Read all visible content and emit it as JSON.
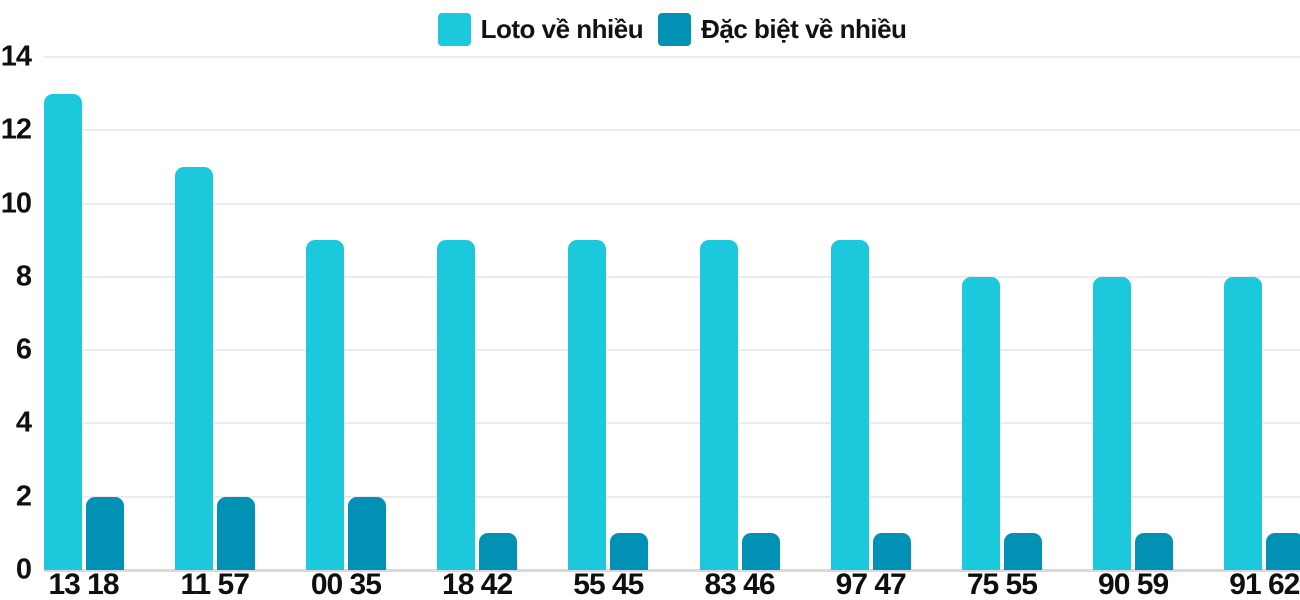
{
  "chart_data": {
    "type": "bar",
    "title": "",
    "xlabel": "",
    "ylabel": "",
    "categories": [
      "13 18",
      "11 57",
      "00 35",
      "18 42",
      "55 45",
      "83 46",
      "97 47",
      "75 55",
      "90 59",
      "91 62"
    ],
    "series": [
      {
        "name": "Loto về nhiều",
        "color": "#1bc8dc",
        "values": [
          13,
          11,
          9,
          9,
          9,
          9,
          9,
          8,
          8,
          8
        ]
      },
      {
        "name": "Đặc biệt về nhiều",
        "color": "#0191b5",
        "values": [
          2,
          2,
          2,
          1,
          1,
          1,
          1,
          1,
          1,
          1
        ]
      }
    ],
    "ylim": [
      0,
      14
    ],
    "yticks": [
      0,
      2,
      4,
      6,
      8,
      10,
      12,
      14
    ],
    "grid": true,
    "legend_position": "top-center"
  },
  "colors": {
    "background": "#ffffff",
    "gridline": "#ebebeb",
    "baseline": "#d9d9d9",
    "text": "#0f0f0f"
  }
}
